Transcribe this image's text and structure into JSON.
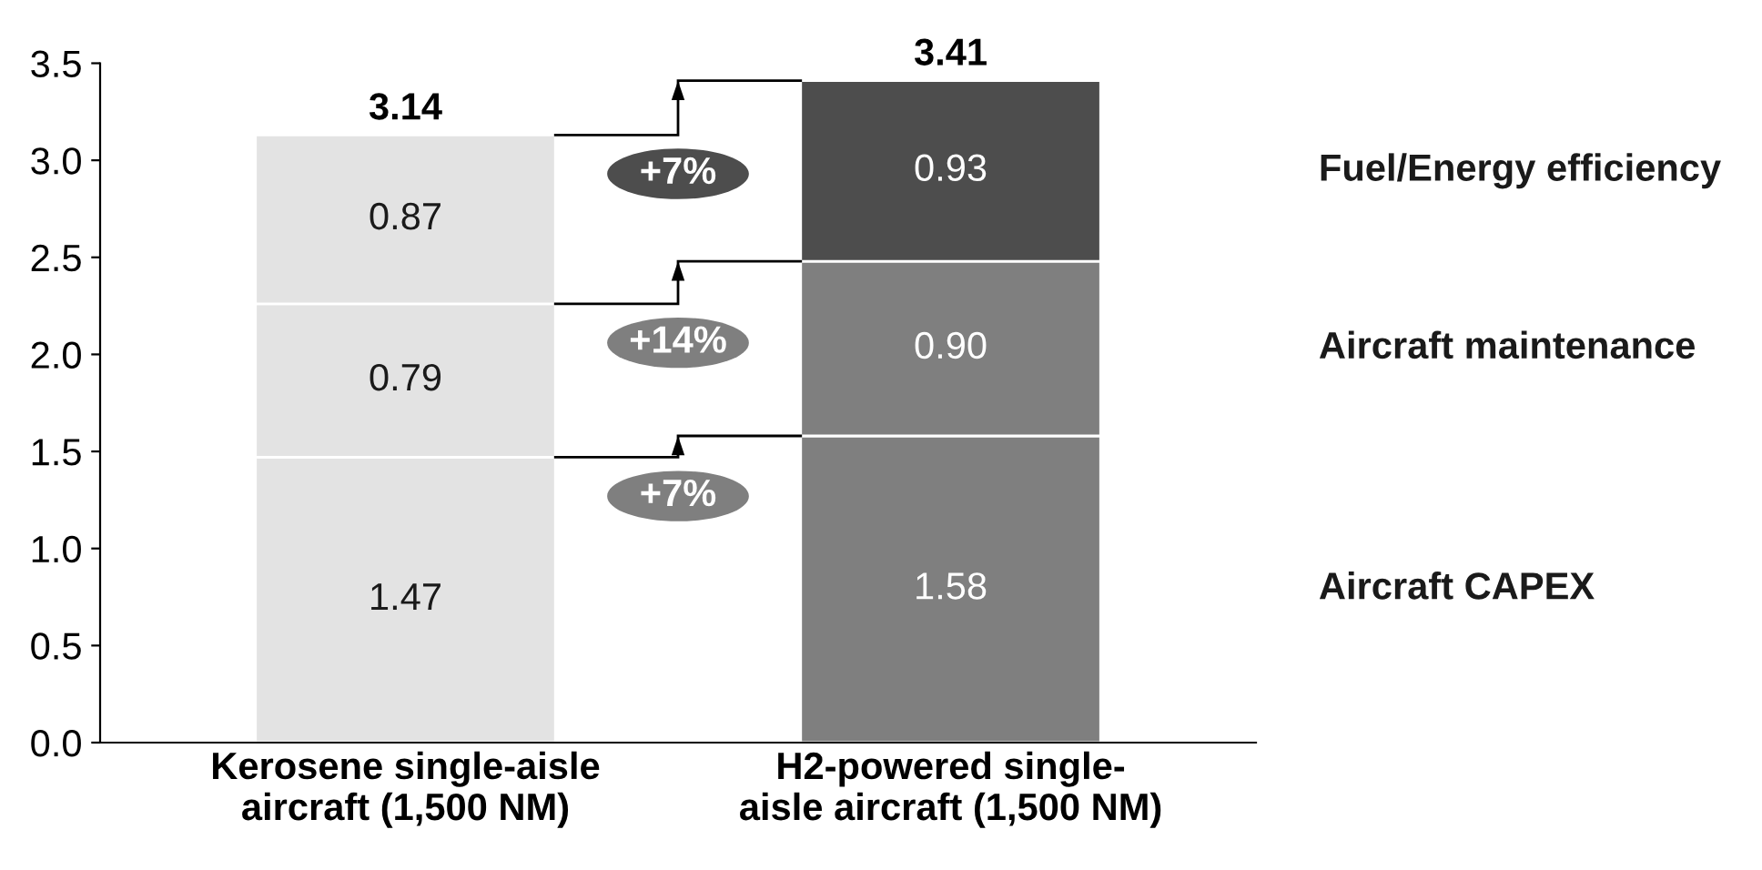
{
  "chart_data": {
    "type": "bar",
    "stacked": true,
    "categories": [
      "Kerosene single-aisle\naircraft (1,500 NM)",
      "H2-powered single-\naisle aircraft (1,500 NM)"
    ],
    "series": [
      {
        "name": "Aircraft CAPEX",
        "colors": [
          "#e3e3e3",
          "#7f7f7f"
        ],
        "values": [
          1.47,
          1.58
        ],
        "value_labels": [
          "1.47",
          "1.58"
        ]
      },
      {
        "name": "Aircraft maintenance",
        "colors": [
          "#e3e3e3",
          "#7f7f7f"
        ],
        "values": [
          0.79,
          0.9
        ],
        "value_labels": [
          "0.79",
          "0.90"
        ]
      },
      {
        "name": "Fuel/Energy efficiency",
        "colors": [
          "#e3e3e3",
          "#4d4d4d"
        ],
        "values": [
          0.87,
          0.93
        ],
        "value_labels": [
          "0.87",
          "0.93"
        ]
      }
    ],
    "totals": [
      "3.14",
      "3.41"
    ],
    "annotations": [
      "+7%",
      "+14%",
      "+7%"
    ],
    "ylim": [
      0,
      3.5
    ],
    "yticks": [
      {
        "value": 0,
        "label": "0.0"
      },
      {
        "value": 0.5,
        "label": "0.5"
      },
      {
        "value": 1,
        "label": "1.0"
      },
      {
        "value": 1.5,
        "label": "1.5"
      },
      {
        "value": 2,
        "label": "2.0"
      },
      {
        "value": 2.5,
        "label": "2.5"
      },
      {
        "value": 3,
        "label": "3.0"
      },
      {
        "value": 3.5,
        "label": "3.5"
      }
    ],
    "grid": false,
    "legend": false
  }
}
